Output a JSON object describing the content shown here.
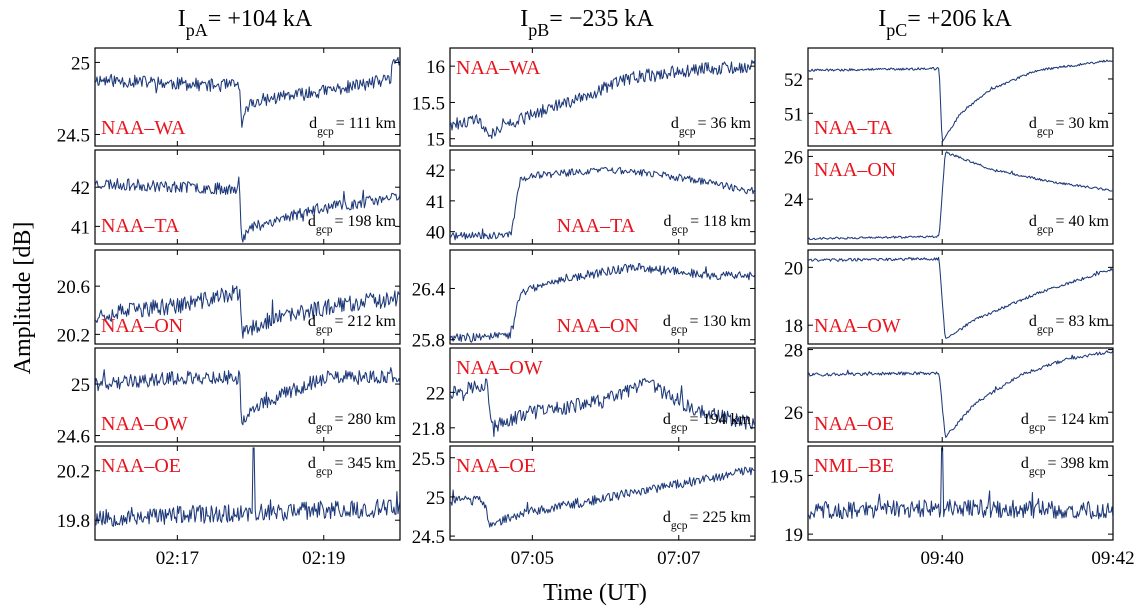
{
  "figure": {
    "ylabel": "Amplitude [dB]",
    "xlabel": "Time (UT)"
  },
  "chart_data": [
    {
      "type": "line",
      "column_title": {
        "pre": "I",
        "sub": "pA",
        "post": "= +104 kA"
      },
      "x_ticks": [
        {
          "label": "02:17",
          "pos": 0.27
        },
        {
          "label": "02:19",
          "pos": 0.75
        }
      ],
      "panels": [
        {
          "station": "NAA–WA",
          "station_pos": "bottom-left",
          "dist": {
            "pre": "d",
            "sub": "gcp",
            "post": "= 111 km"
          },
          "dist_pos": "bottom-right",
          "ylim": [
            24.42,
            25.1
          ],
          "yticks": [
            {
              "v": 25,
              "label": "25"
            },
            {
              "v": 24.5,
              "label": "24.5"
            }
          ],
          "trace": {
            "seed": 11,
            "n": 300,
            "event": 0.48,
            "kind": "dip",
            "shape": [
              [
                0,
                24.88
              ],
              [
                0.2,
                24.86
              ],
              [
                0.4,
                24.84
              ],
              [
                0.475,
                24.84
              ],
              [
                0.48,
                24.52
              ],
              [
                0.5,
                24.7
              ],
              [
                0.55,
                24.74
              ],
              [
                0.75,
                24.8
              ],
              [
                0.97,
                24.88
              ],
              [
                0.975,
                25.03
              ],
              [
                1,
                25.0
              ]
            ],
            "noise": 0.045
          }
        },
        {
          "station": "NAA–TA",
          "station_pos": "bottom-left",
          "dist": {
            "pre": "d",
            "sub": "gcp",
            "post": "= 198 km"
          },
          "dist_pos": "bottom-right",
          "ylim": [
            40.55,
            42.95
          ],
          "yticks": [
            {
              "v": 42,
              "label": "42"
            },
            {
              "v": 41,
              "label": "41"
            }
          ],
          "trace": {
            "seed": 23,
            "n": 300,
            "event": 0.48,
            "kind": "dip",
            "shape": [
              [
                0,
                42.1
              ],
              [
                0.3,
                42.0
              ],
              [
                0.475,
                41.95
              ],
              [
                0.48,
                40.7
              ],
              [
                0.52,
                41.0
              ],
              [
                0.7,
                41.4
              ],
              [
                1,
                41.75
              ]
            ],
            "noise": 0.15
          }
        },
        {
          "station": "NAA–ON",
          "station_pos": "bottom-left",
          "dist": {
            "pre": "d",
            "sub": "gcp",
            "post": "= 212 km"
          },
          "dist_pos": "bottom-right",
          "ylim": [
            20.12,
            20.9
          ],
          "yticks": [
            {
              "v": 20.6,
              "label": "20.6"
            },
            {
              "v": 20.2,
              "label": "20.2"
            }
          ],
          "trace": {
            "seed": 37,
            "n": 300,
            "event": 0.48,
            "kind": "dip",
            "shape": [
              [
                0,
                20.36
              ],
              [
                0.3,
                20.45
              ],
              [
                0.475,
                20.55
              ],
              [
                0.48,
                20.2
              ],
              [
                0.55,
                20.3
              ],
              [
                0.8,
                20.45
              ],
              [
                1,
                20.5
              ]
            ],
            "noise": 0.07
          }
        },
        {
          "station": "NAA–OW",
          "station_pos": "bottom-left",
          "dist": {
            "pre": "d",
            "sub": "gcp",
            "post": "= 280 km"
          },
          "dist_pos": "bottom-right",
          "ylim": [
            24.55,
            25.28
          ],
          "yticks": [
            {
              "v": 25,
              "label": "25"
            },
            {
              "v": 24.6,
              "label": "24.6"
            }
          ],
          "trace": {
            "seed": 41,
            "n": 300,
            "event": 0.48,
            "kind": "dip",
            "shape": [
              [
                0,
                25.0
              ],
              [
                0.3,
                25.05
              ],
              [
                0.475,
                25.05
              ],
              [
                0.48,
                24.72
              ],
              [
                0.55,
                24.85
              ],
              [
                0.75,
                25.05
              ],
              [
                1,
                25.05
              ]
            ],
            "noise": 0.055
          }
        },
        {
          "station": "NAA–OE",
          "station_pos": "top-left",
          "dist": {
            "pre": "d",
            "sub": "gcp",
            "post": "= 345 km"
          },
          "dist_pos": "top-right",
          "ylim": [
            19.64,
            20.4
          ],
          "yticks": [
            {
              "v": 20.2,
              "label": "20.2"
            },
            {
              "v": 19.8,
              "label": "19.8"
            }
          ],
          "trace": {
            "seed": 53,
            "n": 300,
            "event": 0.52,
            "kind": "spike",
            "shape": [
              [
                0,
                19.82
              ],
              [
                0.5,
                19.86
              ],
              [
                1,
                19.9
              ]
            ],
            "noise": 0.075
          }
        }
      ]
    },
    {
      "type": "line",
      "column_title": {
        "pre": "I",
        "sub": "pB",
        "post": "= −235 kA"
      },
      "x_ticks": [
        {
          "label": "07:05",
          "pos": 0.27
        },
        {
          "label": "07:07",
          "pos": 0.75
        }
      ],
      "panels": [
        {
          "station": "NAA–WA",
          "station_pos": "top-left",
          "dist": {
            "pre": "d",
            "sub": "gcp",
            "post": "= 36 km"
          },
          "dist_pos": "bottom-right",
          "ylim": [
            14.9,
            16.25
          ],
          "yticks": [
            {
              "v": 16,
              "label": "16"
            },
            {
              "v": 15.5,
              "label": "15.5"
            },
            {
              "v": 15,
              "label": "15"
            }
          ],
          "trace": {
            "seed": 61,
            "n": 300,
            "event": 0.12,
            "kind": "drop",
            "shape": [
              [
                0,
                15.2
              ],
              [
                0.1,
                15.25
              ],
              [
                0.12,
                15.05
              ],
              [
                0.15,
                15.1
              ],
              [
                0.25,
                15.3
              ],
              [
                0.45,
                15.6
              ],
              [
                0.6,
                15.85
              ],
              [
                0.8,
                15.95
              ],
              [
                1,
                16.0
              ]
            ],
            "noise": 0.09
          }
        },
        {
          "station": "NAA–TA",
          "station_pos": "bottom-mid",
          "dist": {
            "pre": "d",
            "sub": "gcp",
            "post": "= 118 km"
          },
          "dist_pos": "bottom-right",
          "ylim": [
            39.6,
            42.65
          ],
          "yticks": [
            {
              "v": 42,
              "label": "42"
            },
            {
              "v": 41,
              "label": "41"
            },
            {
              "v": 40,
              "label": "40"
            }
          ],
          "trace": {
            "seed": 71,
            "n": 300,
            "event": 0.21,
            "kind": "step",
            "shape": [
              [
                0,
                39.85
              ],
              [
                0.2,
                39.9
              ],
              [
                0.23,
                41.7
              ],
              [
                0.3,
                41.85
              ],
              [
                0.5,
                42.0
              ],
              [
                0.7,
                41.85
              ],
              [
                1,
                41.3
              ]
            ],
            "noise": 0.12
          }
        },
        {
          "station": "NAA–ON",
          "station_pos": "bottom-mid",
          "dist": {
            "pre": "d",
            "sub": "gcp",
            "post": "= 130 km"
          },
          "dist_pos": "bottom-right",
          "ylim": [
            25.75,
            26.85
          ],
          "yticks": [
            {
              "v": 26.4,
              "label": "26.4"
            },
            {
              "v": 25.8,
              "label": "25.8"
            }
          ],
          "trace": {
            "seed": 83,
            "n": 300,
            "event": 0.21,
            "kind": "step",
            "shape": [
              [
                0,
                25.82
              ],
              [
                0.2,
                25.85
              ],
              [
                0.23,
                26.35
              ],
              [
                0.35,
                26.5
              ],
              [
                0.6,
                26.65
              ],
              [
                0.75,
                26.6
              ],
              [
                0.85,
                26.55
              ],
              [
                1,
                26.55
              ]
            ],
            "noise": 0.05
          }
        },
        {
          "station": "NAA–OW",
          "station_pos": "top-left",
          "dist": {
            "pre": "d",
            "sub": "gcp",
            "post": "= 194 km"
          },
          "dist_pos": "bottom-right",
          "ylim": [
            21.72,
            22.25
          ],
          "yticks": [
            {
              "v": 22,
              "label": "22"
            },
            {
              "v": 21.8,
              "label": "21.8"
            }
          ],
          "trace": {
            "seed": 97,
            "n": 300,
            "event": 0.14,
            "kind": "drop",
            "shape": [
              [
                0,
                22.0
              ],
              [
                0.12,
                22.05
              ],
              [
                0.14,
                21.8
              ],
              [
                0.25,
                21.88
              ],
              [
                0.5,
                21.95
              ],
              [
                0.65,
                22.05
              ],
              [
                0.8,
                21.9
              ],
              [
                1,
                21.82
              ]
            ],
            "noise": 0.04
          }
        },
        {
          "station": "NAA–OE",
          "station_pos": "top-left",
          "dist": {
            "pre": "d",
            "sub": "gcp",
            "post": "= 225 km"
          },
          "dist_pos": "bottom-right",
          "ylim": [
            24.45,
            25.65
          ],
          "yticks": [
            {
              "v": 25.5,
              "label": "25.5"
            },
            {
              "v": 25,
              "label": "25"
            },
            {
              "v": 24.5,
              "label": "24.5"
            }
          ],
          "trace": {
            "seed": 103,
            "n": 300,
            "event": 0.12,
            "kind": "drop",
            "shape": [
              [
                0,
                24.95
              ],
              [
                0.11,
                24.95
              ],
              [
                0.13,
                24.65
              ],
              [
                0.25,
                24.8
              ],
              [
                0.6,
                25.05
              ],
              [
                1,
                25.35
              ]
            ],
            "noise": 0.06
          }
        }
      ]
    },
    {
      "type": "line",
      "column_title": {
        "pre": "I",
        "sub": "pC",
        "post": "= +206 kA"
      },
      "x_ticks": [
        {
          "label": "09:40",
          "pos": 0.44
        },
        {
          "label": "09:42",
          "pos": 1.0
        }
      ],
      "panels": [
        {
          "station": "NAA–TA",
          "station_pos": "bottom-left",
          "dist": {
            "pre": "d",
            "sub": "gcp",
            "post": "= 30 km"
          },
          "dist_pos": "bottom-right",
          "ylim": [
            50.05,
            52.9
          ],
          "yticks": [
            {
              "v": 52,
              "label": "52"
            },
            {
              "v": 51,
              "label": "51"
            }
          ],
          "trace": {
            "seed": 109,
            "n": 300,
            "event": 0.44,
            "kind": "recover",
            "shape": [
              [
                0,
                52.25
              ],
              [
                0.43,
                52.3
              ],
              [
                0.44,
                50.15
              ],
              [
                0.5,
                51.0
              ],
              [
                0.6,
                51.7
              ],
              [
                0.75,
                52.25
              ],
              [
                1,
                52.55
              ]
            ],
            "noise": 0.035
          }
        },
        {
          "station": "NAA–ON",
          "station_pos": "top-left",
          "dist": {
            "pre": "d",
            "sub": "gcp",
            "post": "= 40 km"
          },
          "dist_pos": "bottom-right",
          "ylim": [
            21.9,
            26.3
          ],
          "yticks": [
            {
              "v": 26,
              "label": "26"
            },
            {
              "v": 24,
              "label": "24"
            }
          ],
          "trace": {
            "seed": 127,
            "n": 300,
            "event": 0.44,
            "kind": "jump",
            "shape": [
              [
                0,
                22.15
              ],
              [
                0.43,
                22.25
              ],
              [
                0.45,
                26.2
              ],
              [
                0.6,
                25.4
              ],
              [
                0.8,
                24.8
              ],
              [
                1,
                24.4
              ]
            ],
            "noise": 0.05
          }
        },
        {
          "station": "NAA–OW",
          "station_pos": "bottom-left",
          "dist": {
            "pre": "d",
            "sub": "gcp",
            "post": "= 83 km"
          },
          "dist_pos": "bottom-right",
          "ylim": [
            17.35,
            20.6
          ],
          "yticks": [
            {
              "v": 20,
              "label": "20"
            },
            {
              "v": 18,
              "label": "18"
            }
          ],
          "trace": {
            "seed": 131,
            "n": 300,
            "event": 0.44,
            "kind": "recover",
            "shape": [
              [
                0,
                20.25
              ],
              [
                0.43,
                20.3
              ],
              [
                0.45,
                17.5
              ],
              [
                0.55,
                18.2
              ],
              [
                0.75,
                19.1
              ],
              [
                1,
                19.95
              ]
            ],
            "noise": 0.05
          }
        },
        {
          "station": "NAA–OE",
          "station_pos": "bottom-left",
          "dist": {
            "pre": "d",
            "sub": "gcp",
            "post": "= 124 km"
          },
          "dist_pos": "bottom-right",
          "ylim": [
            25.05,
            28.05
          ],
          "yticks": [
            {
              "v": 28,
              "label": "28"
            },
            {
              "v": 26,
              "label": "26"
            }
          ],
          "trace": {
            "seed": 139,
            "n": 300,
            "event": 0.44,
            "kind": "recover",
            "shape": [
              [
                0,
                27.2
              ],
              [
                0.43,
                27.25
              ],
              [
                0.45,
                25.2
              ],
              [
                0.55,
                26.3
              ],
              [
                0.7,
                27.2
              ],
              [
                0.85,
                27.7
              ],
              [
                1,
                27.95
              ]
            ],
            "noise": 0.05
          }
        },
        {
          "station": "NML–BE",
          "station_pos": "top-left",
          "dist": {
            "pre": "d",
            "sub": "gcp",
            "post": "= 398 km"
          },
          "dist_pos": "top-right",
          "ylim": [
            18.95,
            19.75
          ],
          "yticks": [
            {
              "v": 19.5,
              "label": "19.5"
            },
            {
              "v": 19,
              "label": "19"
            }
          ],
          "trace": {
            "seed": 151,
            "n": 300,
            "event": 0.44,
            "kind": "spike",
            "shape": [
              [
                0,
                19.2
              ],
              [
                0.5,
                19.22
              ],
              [
                1,
                19.2
              ]
            ],
            "noise": 0.075
          }
        }
      ]
    }
  ]
}
